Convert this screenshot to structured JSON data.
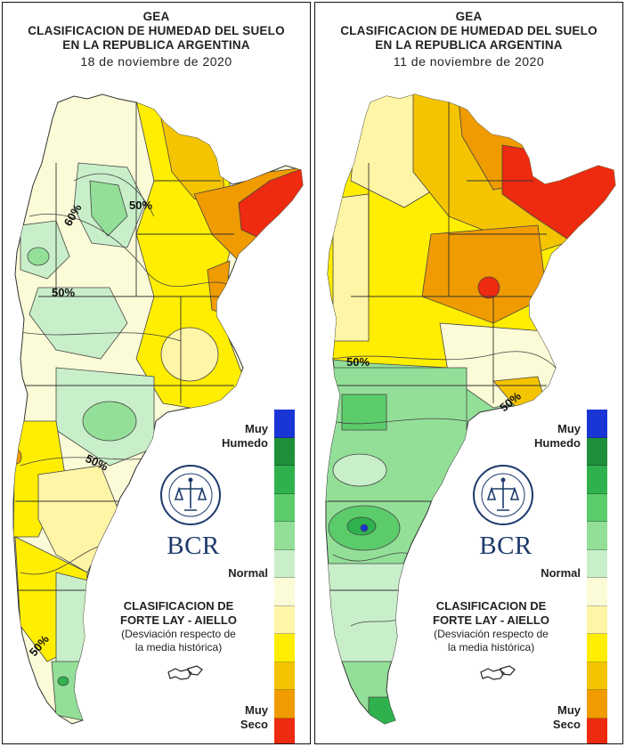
{
  "panels": [
    {
      "org": "GEA",
      "title_line1": "CLASIFICACION DE HUMEDAD DEL SUELO",
      "title_line2": "EN LA REPUBLICA ARGENTINA",
      "date": "18 de noviembre de 2020",
      "contour_labels": [
        "50%",
        "60%",
        "50%",
        "50%",
        "50%"
      ]
    },
    {
      "org": "GEA",
      "title_line1": "CLASIFICACION DE HUMEDAD DEL SUELO",
      "title_line2": "EN LA REPUBLICA ARGENTINA",
      "date": "11 de noviembre de 2020",
      "contour_labels": [
        "50%",
        "50%"
      ]
    }
  ],
  "legend": {
    "top_label": "Muy\nHumedo",
    "top_line1": "Muy",
    "top_line2": "Humedo",
    "middle_label": "Normal",
    "bottom_line1": "Muy",
    "bottom_line2": "Seco",
    "colors": [
      "#1a35d6",
      "#1f8f3a",
      "#2fb24e",
      "#5ccc6a",
      "#93df98",
      "#c9efca",
      "#fbfbd7",
      "#fff5a6",
      "#ffee00",
      "#f5c400",
      "#f09b00",
      "#ee2a10"
    ]
  },
  "classification": {
    "line1": "CLASIFICACION DE",
    "line2": "FORTE LAY - AIELLO",
    "line3": "(Desviación respecto de",
    "line4": "la media histórica)"
  },
  "brand": {
    "logo_text": "BCR",
    "seal_icon": "bolsa-de-comercio-seal-icon"
  }
}
